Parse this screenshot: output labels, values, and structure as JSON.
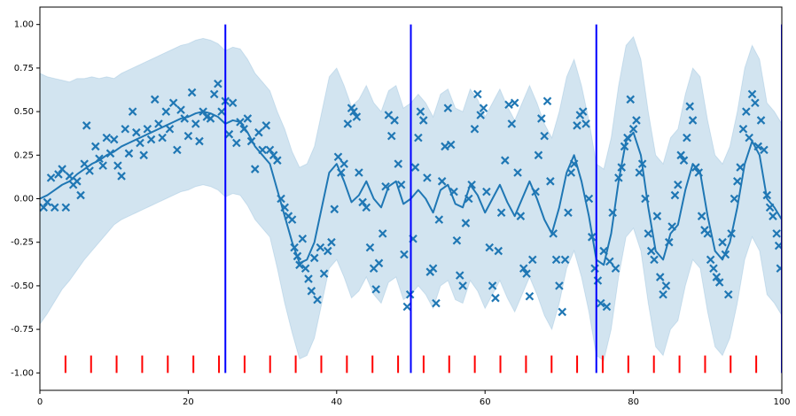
{
  "chart_data": {
    "type": "gp",
    "xlim": [
      0,
      100
    ],
    "ylim": [
      -1.1,
      1.1
    ],
    "xticks": [
      0,
      20,
      40,
      60,
      80,
      100
    ],
    "yticks": [
      {
        "value": -1,
        "label": "-1.00"
      },
      {
        "value": -0.75,
        "label": "-0.75"
      },
      {
        "value": -0.5,
        "label": "-0.50"
      },
      {
        "value": -0.25,
        "label": "-0.25"
      },
      {
        "value": 0,
        "label": "0.00"
      },
      {
        "value": 0.25,
        "label": "0.25"
      },
      {
        "value": 0.5,
        "label": "0.50"
      },
      {
        "value": 0.75,
        "label": "0.75"
      },
      {
        "value": 1,
        "label": "1.00"
      }
    ],
    "band": {
      "color": "#1f77b4",
      "upper": [
        0.72,
        0.7,
        0.69,
        0.68,
        0.67,
        0.69,
        0.69,
        0.7,
        0.69,
        0.7,
        0.69,
        0.72,
        0.74,
        0.76,
        0.78,
        0.8,
        0.82,
        0.84,
        0.86,
        0.88,
        0.89,
        0.91,
        0.92,
        0.91,
        0.89,
        0.85,
        0.87,
        0.86,
        0.8,
        0.72,
        0.67,
        0.62,
        0.5,
        0.4,
        0.27,
        0.18,
        0.2,
        0.3,
        0.5,
        0.7,
        0.75,
        0.65,
        0.53,
        0.57,
        0.65,
        0.55,
        0.5,
        0.62,
        0.65,
        0.52,
        0.55,
        0.6,
        0.55,
        0.47,
        0.6,
        0.63,
        0.52,
        0.5,
        0.63,
        0.57,
        0.47,
        0.55,
        0.63,
        0.53,
        0.45,
        0.55,
        0.65,
        0.55,
        0.43,
        0.35,
        0.5,
        0.7,
        0.8,
        0.65,
        0.45,
        0.2,
        0.17,
        0.35,
        0.65,
        0.88,
        0.93,
        0.8,
        0.5,
        0.25,
        0.2,
        0.35,
        0.4,
        0.6,
        0.75,
        0.7,
        0.45,
        0.25,
        0.2,
        0.3,
        0.5,
        0.75,
        0.88,
        0.8,
        0.55,
        0.5,
        0.43
      ],
      "lower": [
        -0.72,
        -0.66,
        -0.59,
        -0.52,
        -0.47,
        -0.41,
        -0.35,
        -0.3,
        -0.25,
        -0.2,
        -0.15,
        -0.12,
        -0.1,
        -0.08,
        -0.06,
        -0.04,
        -0.02,
        0,
        0.02,
        0.04,
        0.05,
        0.07,
        0.08,
        0.07,
        0.05,
        0.01,
        0.03,
        0.02,
        -0.04,
        -0.12,
        -0.17,
        -0.22,
        -0.4,
        -0.6,
        -0.77,
        -0.92,
        -0.9,
        -0.8,
        -0.6,
        -0.4,
        -0.35,
        -0.45,
        -0.57,
        -0.53,
        -0.45,
        -0.55,
        -0.6,
        -0.48,
        -0.45,
        -0.58,
        -0.55,
        -0.5,
        -0.55,
        -0.63,
        -0.5,
        -0.47,
        -0.58,
        -0.6,
        -0.47,
        -0.53,
        -0.63,
        -0.55,
        -0.47,
        -0.57,
        -0.65,
        -0.55,
        -0.45,
        -0.55,
        -0.67,
        -0.75,
        -0.6,
        -0.4,
        -0.3,
        -0.45,
        -0.65,
        -0.9,
        -0.93,
        -0.75,
        -0.45,
        -0.22,
        -0.17,
        -0.3,
        -0.6,
        -0.85,
        -0.9,
        -0.75,
        -0.7,
        -0.5,
        -0.35,
        -0.4,
        -0.65,
        -0.85,
        -0.9,
        -0.8,
        -0.6,
        -0.35,
        -0.22,
        -0.3,
        -0.55,
        -0.6,
        -0.67
      ]
    },
    "mean": {
      "color": "#1f77b4",
      "x": [
        0,
        1,
        2,
        3,
        4,
        5,
        6,
        7,
        8,
        9,
        10,
        11,
        12,
        13,
        14,
        15,
        16,
        17,
        18,
        19,
        20,
        21,
        22,
        23,
        24,
        25,
        26,
        27,
        28,
        29,
        30,
        31,
        32,
        33,
        34,
        35,
        36,
        37,
        38,
        39,
        40,
        41,
        42,
        43,
        44,
        45,
        46,
        47,
        48,
        49,
        50,
        51,
        52,
        53,
        54,
        55,
        56,
        57,
        58,
        59,
        60,
        61,
        62,
        63,
        64,
        65,
        66,
        67,
        68,
        69,
        70,
        71,
        72,
        73,
        74,
        75,
        76,
        77,
        78,
        79,
        80,
        81,
        82,
        83,
        84,
        85,
        86,
        87,
        88,
        89,
        90,
        91,
        92,
        93,
        94,
        95,
        96,
        97,
        98,
        99,
        100
      ],
      "values": [
        0,
        0.02,
        0.05,
        0.08,
        0.1,
        0.14,
        0.17,
        0.2,
        0.22,
        0.25,
        0.27,
        0.3,
        0.32,
        0.34,
        0.36,
        0.38,
        0.4,
        0.42,
        0.44,
        0.46,
        0.47,
        0.49,
        0.5,
        0.49,
        0.47,
        0.43,
        0.45,
        0.44,
        0.38,
        0.3,
        0.25,
        0.2,
        0.05,
        -0.1,
        -0.25,
        -0.37,
        -0.35,
        -0.25,
        -0.05,
        0.15,
        0.2,
        0.1,
        -0.02,
        0.02,
        0.1,
        0,
        -0.05,
        0.07,
        0.1,
        -0.03,
        0,
        0.05,
        0,
        -0.08,
        0.05,
        0.08,
        -0.03,
        -0.05,
        0.08,
        0.02,
        -0.08,
        0,
        0.08,
        -0.02,
        -0.1,
        0,
        0.1,
        0,
        -0.12,
        -0.2,
        -0.05,
        0.15,
        0.25,
        0.1,
        -0.1,
        -0.35,
        -0.38,
        -0.2,
        0.1,
        0.33,
        0.38,
        0.25,
        -0.05,
        -0.3,
        -0.35,
        -0.2,
        -0.15,
        0.05,
        0.2,
        0.15,
        -0.1,
        -0.3,
        -0.35,
        -0.25,
        -0.05,
        0.2,
        0.33,
        0.25,
        0,
        -0.05,
        -0.12
      ]
    },
    "observations": {
      "color": "#1f77b4",
      "x": [
        0.5,
        1,
        1.5,
        2,
        2.5,
        3,
        3.5,
        4,
        4.5,
        5,
        5.5,
        6,
        6.3,
        6.7,
        7.5,
        8,
        8.5,
        9,
        9.5,
        10,
        10.5,
        11,
        11.5,
        12,
        12.5,
        13,
        13.5,
        14,
        14.5,
        15,
        15.5,
        16,
        16.5,
        17,
        17.5,
        18,
        18.5,
        19,
        19.5,
        20,
        20.5,
        21,
        21.5,
        22,
        22.5,
        23,
        23.5,
        24,
        24.5,
        25,
        25.5,
        26,
        26.5,
        27,
        27.5,
        28,
        28.5,
        29,
        29.5,
        30,
        30.5,
        31,
        31.5,
        32,
        32.5,
        33,
        33.5,
        34,
        34.3,
        34.7,
        35,
        35.4,
        35.8,
        36.2,
        36.6,
        37,
        37.4,
        37.8,
        38.3,
        38.8,
        39.3,
        39.7,
        40.2,
        40.6,
        41,
        41.5,
        42,
        42.3,
        42.7,
        43,
        43.5,
        44,
        44.5,
        45,
        45.3,
        45.7,
        46.2,
        46.6,
        47,
        47.4,
        47.8,
        48.3,
        48.7,
        49.1,
        49.5,
        49.9,
        50.3,
        50.6,
        51,
        51.3,
        51.7,
        52.2,
        52.6,
        53,
        53.4,
        53.8,
        54.2,
        54.6,
        55,
        55.4,
        55.8,
        56.2,
        56.6,
        57,
        57.4,
        57.8,
        58.2,
        58.6,
        59,
        59.4,
        59.8,
        60.2,
        60.6,
        61,
        61.4,
        61.8,
        62.2,
        62.7,
        63.2,
        63.6,
        64,
        64.4,
        64.8,
        65.2,
        65.6,
        66,
        66.4,
        66.8,
        67.2,
        67.6,
        68,
        68.4,
        68.8,
        69.2,
        69.6,
        70,
        70.4,
        70.8,
        71.2,
        71.6,
        72,
        72.4,
        72.8,
        73.2,
        73.6,
        74,
        74.4,
        74.8,
        75.2,
        75.6,
        76,
        76.4,
        76.8,
        77.2,
        77.6,
        78,
        78.4,
        78.8,
        79.2,
        79.6,
        80,
        80.4,
        80.8,
        81.2,
        81.6,
        82,
        82.4,
        82.8,
        83.2,
        83.6,
        84,
        84.4,
        84.8,
        85.2,
        85.6,
        86,
        86.4,
        86.8,
        87.2,
        87.6,
        88,
        88.4,
        88.8,
        89.2,
        89.6,
        90,
        90.4,
        90.8,
        91.2,
        91.6,
        92,
        92.4,
        92.8,
        93.2,
        93.6,
        94,
        94.4,
        94.8,
        95.2,
        95.6,
        96,
        96.4,
        96.8,
        97.2,
        97.6,
        98,
        98.4,
        98.8,
        99.3,
        99.6,
        99.8
      ],
      "y": [
        -0.05,
        -0.02,
        0.12,
        -0.05,
        0.14,
        0.17,
        -0.05,
        0.13,
        0.08,
        0.1,
        0.02,
        0.2,
        0.42,
        0.16,
        0.3,
        0.23,
        0.19,
        0.35,
        0.26,
        0.34,
        0.19,
        0.13,
        0.4,
        0.26,
        0.5,
        0.38,
        0.32,
        0.25,
        0.4,
        0.34,
        0.57,
        0.43,
        0.35,
        0.5,
        0.4,
        0.55,
        0.28,
        0.51,
        0.46,
        0.36,
        0.61,
        0.43,
        0.33,
        0.5,
        0.47,
        0.46,
        0.6,
        0.66,
        0.5,
        0.56,
        0.37,
        0.55,
        0.32,
        0.44,
        0.4,
        0.46,
        0.33,
        0.17,
        0.38,
        0.28,
        0.42,
        0.28,
        0.25,
        0.22,
        0,
        -0.05,
        -0.1,
        -0.12,
        -0.28,
        -0.33,
        -0.38,
        -0.23,
        -0.4,
        -0.46,
        -0.53,
        -0.34,
        -0.58,
        -0.28,
        -0.43,
        -0.3,
        -0.25,
        -0.06,
        0.24,
        0.15,
        0.2,
        0.43,
        0.52,
        0.5,
        0.47,
        0.15,
        -0.02,
        -0.05,
        -0.28,
        -0.4,
        -0.52,
        -0.37,
        -0.2,
        0.07,
        0.48,
        0.36,
        0.45,
        0.2,
        0.08,
        -0.32,
        -0.62,
        -0.55,
        -0.23,
        0.18,
        0.35,
        0.5,
        0.45,
        0.12,
        -0.42,
        -0.4,
        -0.6,
        -0.12,
        0.1,
        0.3,
        0.52,
        0.31,
        0.04,
        -0.24,
        -0.44,
        -0.5,
        -0.14,
        0,
        0.08,
        0.4,
        0.6,
        0.48,
        0.52,
        0.04,
        -0.28,
        -0.5,
        -0.57,
        -0.3,
        -0.08,
        0.22,
        0.54,
        0.43,
        0.55,
        0.15,
        -0.1,
        -0.4,
        -0.43,
        -0.56,
        -0.35,
        0.04,
        0.25,
        0.46,
        0.36,
        0.56,
        0.1,
        -0.2,
        -0.35,
        -0.5,
        -0.65,
        -0.35,
        -0.08,
        0.15,
        0.2,
        0.42,
        0.48,
        0.5,
        0.43,
        0,
        -0.22,
        -0.4,
        -0.47,
        -0.6,
        -0.3,
        -0.62,
        -0.36,
        -0.08,
        -0.4,
        0.12,
        0.18,
        0.3,
        0.35,
        0.57,
        0.4,
        0.45,
        0.15,
        0.2,
        0,
        -0.2,
        -0.3,
        -0.35,
        -0.1,
        -0.45,
        -0.55,
        -0.5,
        -0.25,
        -0.16,
        0.02,
        0.08,
        0.25,
        0.22,
        0.35,
        0.53,
        0.45,
        0.18,
        0.15,
        -0.1,
        -0.18,
        -0.2,
        -0.35,
        -0.4,
        -0.45,
        -0.48,
        -0.25,
        -0.32,
        -0.55,
        -0.2,
        0,
        0.1,
        0.18,
        0.4,
        0.5,
        0.35,
        0.6,
        0.55,
        0.3,
        0.45,
        0.28,
        0.02,
        -0.05,
        -0.1,
        -0.2,
        -0.27,
        -0.4
      ]
    },
    "vlines": {
      "color": "blue",
      "x": [
        25,
        50,
        75,
        100
      ],
      "y_range": [
        -1,
        1
      ]
    },
    "inducing": {
      "color": "red",
      "x": [
        3.45,
        6.9,
        10.34,
        13.79,
        17.24,
        20.69,
        24.14,
        27.59,
        31.03,
        34.48,
        37.93,
        41.38,
        44.83,
        48.28,
        51.72,
        55.17,
        58.62,
        62.07,
        65.52,
        68.97,
        72.41,
        75.86,
        79.31,
        82.76,
        86.21,
        89.66,
        93.1,
        96.55
      ],
      "y_range": [
        -1,
        -0.9
      ]
    }
  }
}
